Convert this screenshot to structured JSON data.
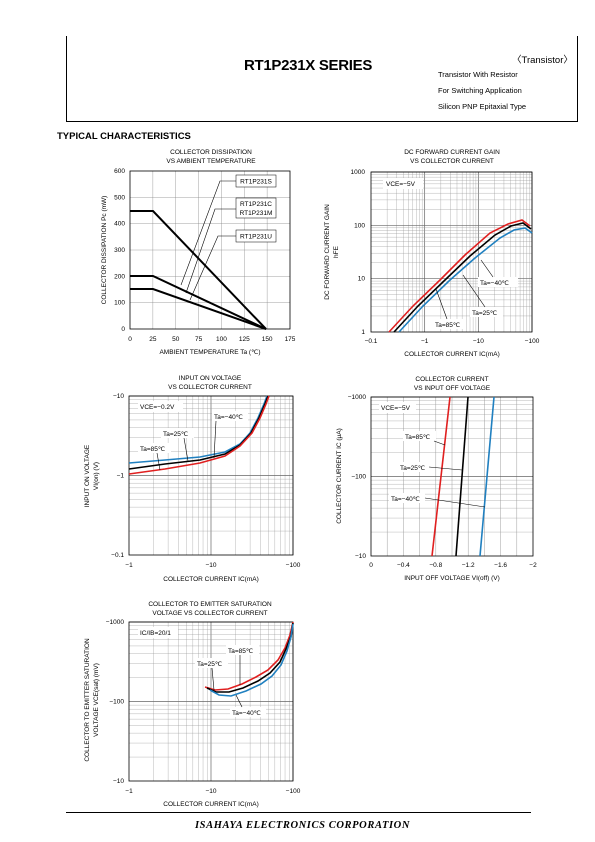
{
  "header": {
    "series": "RT1P231X SERIES",
    "tag": "〈Transistor〉",
    "desc1": "Transistor With Resistor",
    "desc2": "For Switching Application",
    "desc3": "Silicon PNP Epitaxial Type"
  },
  "section": "TYPICAL CHARACTERISTICS",
  "footer": "ISAHAYA   ELECTRONICS   CORPORATION",
  "charts": {
    "c1": {
      "title1": "COLLECTOR DISSIPATION",
      "title2": "VS AMBIENT TEMPERATURE",
      "xlabel": "AMBIENT TEMPERATURE Ta (℃)",
      "ylabel": "COLLECTOR DISSIPATION Pc (mW)",
      "xticks": [
        "0",
        "25",
        "50",
        "75",
        "100",
        "125",
        "150",
        "175"
      ],
      "yticks": [
        "0",
        "100",
        "200",
        "300",
        "400",
        "500",
        "600"
      ],
      "legend1": "RT1P231S",
      "legend2a": "RT1P231C",
      "legend2b": "RT1P231M",
      "legend3": "RT1P231U"
    },
    "c2": {
      "title1": "DC FORWARD CURRENT GAIN",
      "title2": "VS COLLECTOR CURRENT",
      "xlabel": "COLLECTOR CURRENT  IC(mA)",
      "ylabel1": "DC FORWARD CURRENT GAIN",
      "ylabel2": "hFE",
      "xticks": [
        "−0.1",
        "−1",
        "−10",
        "−100"
      ],
      "yticks": [
        "1",
        "10",
        "100",
        "1000"
      ],
      "cond": "VCE=−5V",
      "l1": "Ta=−40℃",
      "l2": "Ta=25℃",
      "l3": "Ta=85℃"
    },
    "c3": {
      "title1": "INPUT ON VOLTAGE",
      "title2": "VS COLLECTOR CURRENT",
      "xlabel": "COLLECTOR CURRENT  IC(mA)",
      "ylabel1": "INPUT ON VOLTAGE",
      "ylabel2": "VI(on) (V)",
      "xticks": [
        "−1",
        "−10",
        "−100"
      ],
      "yticks": [
        "−0.1",
        "−1",
        "−10"
      ],
      "cond": "VCE=−0.2V",
      "l1": "Ta=−40℃",
      "l2": "Ta=25℃",
      "l3": "Ta=85℃"
    },
    "c4": {
      "title1": "COLLECTOR CURRENT",
      "title2": "VS INPUT OFF VOLTAGE",
      "xlabel": "INPUT OFF VOLTAGE VI(off) (V)",
      "ylabel": "COLLECTOR CURRENT IC (μA)",
      "xticks": [
        "0",
        "−0.4",
        "−0.8",
        "−1.2",
        "−1.6",
        "−2"
      ],
      "yticks": [
        "−10",
        "−100",
        "−1000"
      ],
      "cond": "VCE=−5V",
      "l1": "Ta=85℃",
      "l2": "Ta=25℃",
      "l3": "Ta=−40℃"
    },
    "c5": {
      "title1": "COLLECTOR TO EMITTER SATURATION",
      "title2": "VOLTAGE VS COLLECTOR CURRENT",
      "xlabel": "COLLECTOR CURRENT  IC(mA)",
      "ylabel1": "COLLECTOR TO EMITTER SATURATION",
      "ylabel2": "VOLTAGE VCE(sat) (mV)",
      "xticks": [
        "−1",
        "−10",
        "−100"
      ],
      "yticks": [
        "−10",
        "−100",
        "−1000"
      ],
      "cond": "IC/IB=20/1",
      "l1": "Ta=85℃",
      "l2": "Ta=25℃",
      "l3": "Ta=−40℃"
    }
  }
}
